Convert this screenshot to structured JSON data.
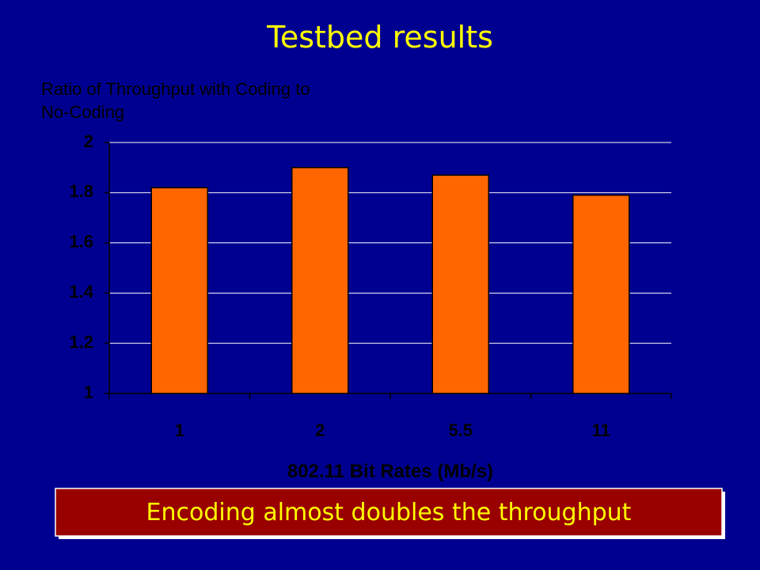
{
  "chart_data": {
    "type": "bar",
    "title": "Testbed results",
    "ylabel": "Ratio of Throughput with Coding to No-Coding",
    "xlabel": "802.11 Bit Rates (Mb/s)",
    "annotation": "Encoding almost doubles the throughput",
    "categories": [
      "1",
      "2",
      "5.5",
      "11"
    ],
    "values": [
      1.82,
      1.9,
      1.87,
      1.79
    ],
    "color": "#ff6600",
    "ylim": [
      1,
      2
    ],
    "yticks": [
      1,
      1.2,
      1.4,
      1.6,
      1.8,
      2
    ],
    "grid": true
  }
}
